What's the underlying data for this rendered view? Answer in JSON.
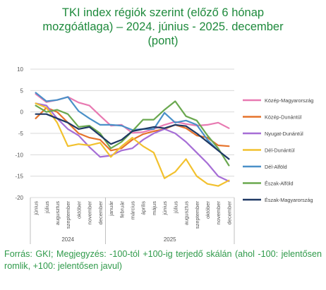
{
  "chart_data": {
    "type": "line",
    "title_lines": [
      "TKI index régiók szerint (előző 6 hónap",
      "mozgóátlaga) – 2024. június - 2025. december",
      "(pont)"
    ],
    "categories": [
      "június",
      "július",
      "augusztus",
      "szeptember",
      "október",
      "november",
      "december",
      "január",
      "február",
      "március",
      "április",
      "május",
      "június",
      "július",
      "augusztus",
      "szeptember",
      "október",
      "november",
      "december"
    ],
    "year_groups": [
      {
        "label": "2024",
        "start": 0,
        "end": 6
      },
      {
        "label": "2025",
        "start": 7,
        "end": 18
      }
    ],
    "ylim": [
      -20,
      10
    ],
    "yticks": [
      -20,
      -15,
      -10,
      -5,
      0,
      5,
      10
    ],
    "grid": true,
    "legend_position": "right",
    "series": [
      {
        "name": "Közép-Magyarország",
        "color": "#e87ab2",
        "values": [
          4.2,
          2.3,
          2.8,
          3.5,
          2.2,
          1.5,
          -0.9,
          -3.2,
          -3.0,
          -4.9,
          -4.7,
          -4.0,
          -3.0,
          -2.3,
          -2.8,
          -3.2,
          -3.0,
          -2.5,
          -3.8
        ]
      },
      {
        "name": "Közép-Dunántúl",
        "color": "#e6732b",
        "values": [
          -1.5,
          1.0,
          0.0,
          -2.5,
          -5.0,
          -6.0,
          -6.5,
          -9.0,
          -8.5,
          -6.5,
          -5.2,
          -4.5,
          -4.0,
          -3.0,
          -3.8,
          -5.5,
          -6.0,
          -7.8,
          -8.0
        ]
      },
      {
        "name": "Nyugat-Dunántúl",
        "color": "#a66ed6",
        "values": [
          2.0,
          1.5,
          -1.5,
          -4.0,
          -5.5,
          -8.2,
          -10.5,
          -10.2,
          -9.0,
          -8.5,
          -6.5,
          -5.0,
          -4.0,
          -5.0,
          -7.0,
          -9.5,
          -12.0,
          -15.0,
          -16.2
        ]
      },
      {
        "name": "Dél-Dunántúl",
        "color": "#f2c12e",
        "values": [
          2.0,
          1.0,
          -2.5,
          -8.0,
          -7.5,
          -7.8,
          -7.2,
          -10.5,
          -8.0,
          -6.0,
          -8.0,
          -9.5,
          -15.5,
          -14.0,
          -11.0,
          -15.0,
          -16.8,
          -17.3,
          -16.0
        ]
      },
      {
        "name": "Dél-Alföld",
        "color": "#4a90c8",
        "values": [
          4.5,
          2.5,
          2.8,
          3.5,
          0.2,
          -1.5,
          -3.0,
          -3.0,
          -3.2,
          -4.2,
          -4.0,
          -4.0,
          -0.2,
          -2.5,
          -2.0,
          -3.0,
          -6.5,
          -9.0,
          -11.0
        ]
      },
      {
        "name": "Észak-Alföld",
        "color": "#6aa84f",
        "values": [
          1.5,
          0.0,
          0.5,
          -0.5,
          -3.5,
          -3.2,
          -5.0,
          -8.5,
          -7.0,
          -4.5,
          -1.8,
          -1.8,
          0.5,
          2.5,
          -1.0,
          -2.0,
          -5.5,
          -8.5,
          -12.5
        ]
      },
      {
        "name": "Észak-Magyarország",
        "color": "#1f3864",
        "values": [
          -0.5,
          -0.5,
          -1.5,
          -2.5,
          -4.0,
          -3.5,
          -5.5,
          -7.5,
          -6.5,
          -4.5,
          -4.0,
          -3.5,
          -3.8,
          -3.0,
          -3.3,
          -5.0,
          -7.0,
          -9.0,
          -11.0
        ]
      }
    ],
    "source_note": "Forrás: GKI; Megjegyzés: -100-tól +100-ig terjedő skálán (ahol -100: jelentősen romlik, +100: jelentősen javul)"
  }
}
